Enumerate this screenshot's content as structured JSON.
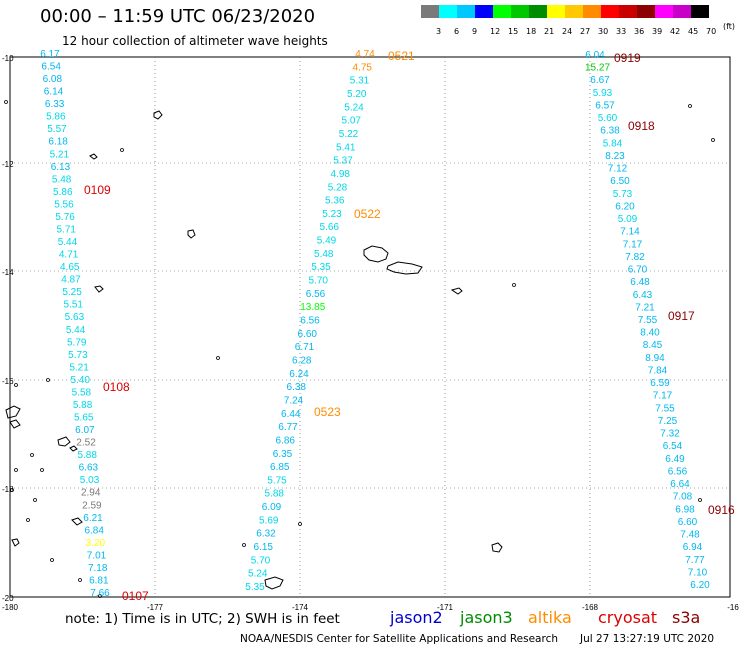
{
  "title": "00:00 – 11:59 UTC 06/23/2020",
  "subtitle": "12 hour collection of altimeter wave heights",
  "color_scale": {
    "labels": [
      "3",
      "6",
      "9",
      "12",
      "15",
      "18",
      "21",
      "24",
      "27",
      "30",
      "33",
      "36",
      "39",
      "42",
      "45",
      "70"
    ],
    "unit": "(ft)",
    "colors": [
      "#7a7a7a",
      "#00ffff",
      "#00c8ff",
      "#0000ff",
      "#00ff00",
      "#00c800",
      "#008c00",
      "#ffff00",
      "#ffc800",
      "#ff8c00",
      "#ff0000",
      "#c80000",
      "#8c0000",
      "#ff00ff",
      "#c800c8",
      "#000000"
    ]
  },
  "axes": {
    "lat_ticks": [
      "-10",
      "-12",
      "-14",
      "-16",
      "-18",
      "-20"
    ],
    "lon_ticks": [
      "-180",
      "-177",
      "-174",
      "-171",
      "-168",
      "-16"
    ]
  },
  "footer": {
    "note": "note: 1) Time is in UTC; 2) SWH is in feet",
    "satellites": [
      {
        "name": "jason2",
        "color": "#0000cd"
      },
      {
        "name": "jason3",
        "color": "#008c00"
      },
      {
        "name": "altika",
        "color": "#ff8c00"
      },
      {
        "name": "cryosat",
        "color": "#dd0000"
      },
      {
        "name": "s3a",
        "color": "#8b0000"
      }
    ],
    "credit": "NOAA/NESDIS Center for Satellite Applications and Research",
    "timestamp": "Jul 27 13:27:19 UTC 2020"
  },
  "pass_labels": [
    {
      "text": "0109",
      "color": "#dd0000"
    },
    {
      "text": "0108",
      "color": "#dd0000"
    },
    {
      "text": "0107",
      "color": "#dd0000"
    },
    {
      "text": "0521",
      "color": "#ff8c00"
    },
    {
      "text": "0522",
      "color": "#ff8c00"
    },
    {
      "text": "0523",
      "color": "#ff8c00"
    },
    {
      "text": "0919",
      "color": "#8b0000"
    },
    {
      "text": "0918",
      "color": "#8b0000"
    },
    {
      "text": "0917",
      "color": "#8b0000"
    },
    {
      "text": "0916",
      "color": "#8b0000"
    }
  ],
  "tracks": [
    {
      "values": [
        "6.17",
        "6.54",
        "6.08",
        "6.14",
        "6.33",
        "5.86",
        "5.57",
        "6.18",
        "5.21",
        "6.13",
        "5.48",
        "5.86",
        "5.56",
        "5.76",
        "5.71",
        "5.44",
        "4.71",
        "4.65",
        "4.87",
        "5.25",
        "5.51",
        "5.63",
        "5.44",
        "5.79",
        "5.73",
        "5.21",
        "5.40",
        "5.58",
        "5.88",
        "5.65",
        "6.07",
        "2.52",
        "5.88",
        "6.63",
        "5.03",
        "2.94",
        "2.59",
        "6.21",
        "6.84",
        "3.20",
        "7.01",
        "7.18",
        "6.81",
        "7.66"
      ],
      "colors": {
        "2.52": "#7a7a7a",
        "2.94": "#7a7a7a",
        "2.59": "#7a7a7a",
        "3.20": "#ffff00"
      }
    },
    {
      "values": [
        "4.74",
        "4.75",
        "5.31",
        "5.20",
        "5.24",
        "5.07",
        "5.22",
        "5.41",
        "5.37",
        "4.98",
        "5.28",
        "5.36",
        "5.23",
        "5.66",
        "5.49",
        "5.48",
        "5.35",
        "5.70",
        "6.56",
        "13.85",
        "6.56",
        "6.60",
        "6.71",
        "6.28",
        "6.24",
        "6.38",
        "7.24",
        "6.44",
        "6.77",
        "6.86",
        "6.35",
        "6.85",
        "5.75",
        "5.88",
        "6.09",
        "5.69",
        "6.32",
        "6.15",
        "5.70",
        "5.24",
        "5.35"
      ],
      "colors": {
        "4.74": "#ff8c00",
        "4.75": "#ff8c00",
        "13.85": "#00ff00"
      }
    },
    {
      "values": [
        "6.04",
        "15.27",
        "6.67",
        "5.93",
        "6.57",
        "5.60",
        "6.38",
        "5.84",
        "8.23",
        "7.12",
        "6.50",
        "5.73",
        "6.20",
        "5.09",
        "7.14",
        "7.17",
        "7.82",
        "6.70",
        "6.48",
        "6.43",
        "7.21",
        "7.55",
        "8.40",
        "8.45",
        "8.94",
        "7.84",
        "6.59",
        "7.17",
        "7.55",
        "7.25",
        "7.32",
        "6.54",
        "6.49",
        "6.56",
        "6.64",
        "7.08",
        "6.98",
        "6.60",
        "7.48",
        "6.94",
        "7.77",
        "7.10",
        "6.20"
      ],
      "colors": {
        "15.27": "#00c800"
      }
    }
  ]
}
